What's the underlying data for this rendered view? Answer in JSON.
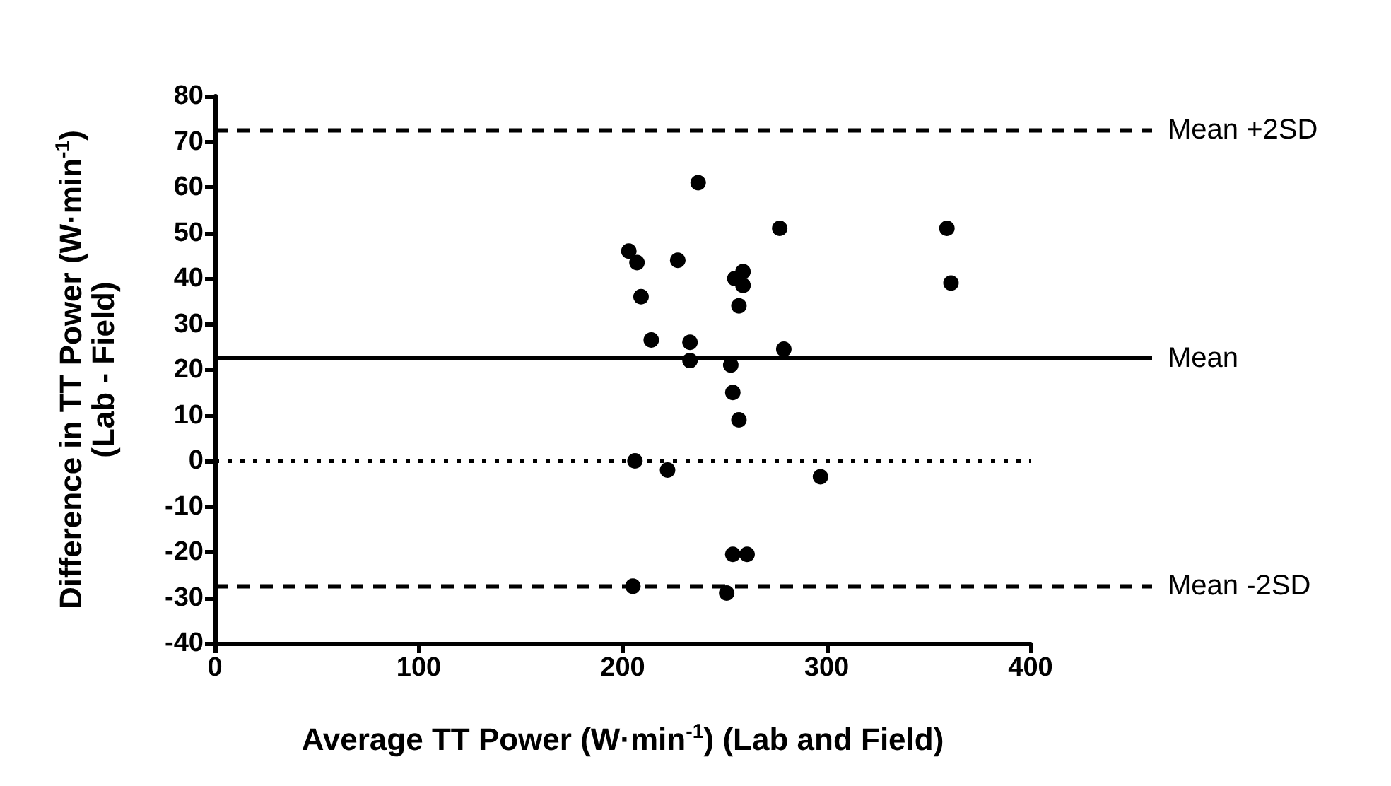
{
  "chart_data": {
    "type": "scatter",
    "xlabel": "Average TT Power (W·min$^{-1}$) (Lab and Field)",
    "ylabel": "Difference in TT Power (W·min$^{-1}$)\n(Lab - Field)",
    "x": [
      203,
      207,
      209,
      214,
      206,
      205,
      222,
      227,
      237,
      233,
      233,
      253,
      254,
      257,
      255,
      259,
      259,
      257,
      254,
      261,
      251,
      277,
      279,
      297,
      359,
      361
    ],
    "values": [
      46,
      43.5,
      36,
      26.5,
      0,
      -27.5,
      -2,
      44,
      61,
      26,
      22,
      21,
      15,
      9,
      40,
      41.5,
      38.5,
      34,
      -20.5,
      -20.5,
      -29,
      51,
      24.5,
      -3.5,
      51,
      39
    ],
    "color": "#000000",
    "marker": "circle",
    "grid": false,
    "xlim": [
      0,
      400
    ],
    "xticks": [
      0,
      100,
      200,
      300,
      400
    ],
    "ylim": [
      -40,
      80
    ],
    "yticks": [
      -40,
      -30,
      -20,
      -10,
      0,
      10,
      20,
      30,
      40,
      50,
      60,
      70,
      80
    ],
    "ref_lines": [
      {
        "axis": "y",
        "value": 72.5,
        "label": "Mean +2SD",
        "line_style": "dashed",
        "color": "#000000"
      },
      {
        "axis": "y",
        "value": 22.5,
        "label": "Mean",
        "line_style": "solid",
        "color": "#000000"
      },
      {
        "axis": "y",
        "value": 0,
        "label": null,
        "line_style": "dotted",
        "color": "#000000"
      },
      {
        "axis": "y",
        "value": -27.5,
        "label": "Mean -2SD",
        "line_style": "dashed",
        "color": "#000000"
      }
    ]
  }
}
